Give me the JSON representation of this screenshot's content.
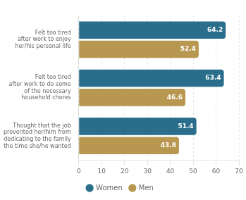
{
  "chart_data": {
    "type": "bar",
    "orientation": "horizontal",
    "categories": [
      "Felt too tired\nafter work to enjoy\nher/his personal life",
      "Felt too tired\nafter work to do some\nof the necessary\nhousehold chores",
      "Thought that the job\nprevented her/him from\ndedicating to the family\nthe time she/he wanted"
    ],
    "series": [
      {
        "name": "Women",
        "color": "#2a6e8c",
        "values": [
          64.2,
          63.4,
          51.4
        ]
      },
      {
        "name": "Men",
        "color": "#b89850",
        "values": [
          52.4,
          46.6,
          43.8
        ]
      }
    ],
    "xlim": [
      0,
      70
    ],
    "xticks": [
      0,
      10,
      20,
      30,
      40,
      50,
      60,
      70
    ],
    "grid": true,
    "legend": "bottom",
    "data_labels": true
  }
}
